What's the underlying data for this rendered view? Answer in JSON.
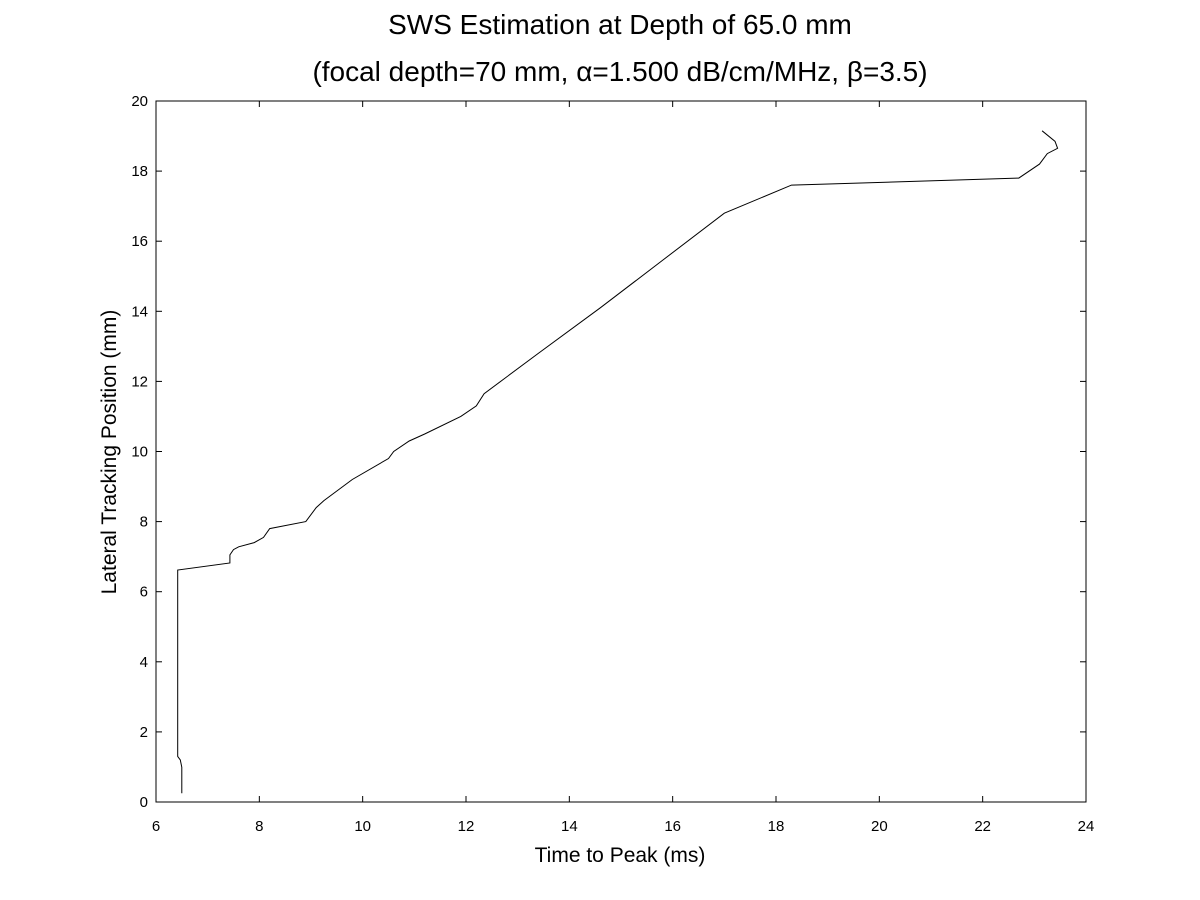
{
  "chart_data": {
    "type": "line",
    "title": "SWS Estimation at Depth of 65.0 mm",
    "subtitle": "(focal depth=70 mm, α=1.500 dB/cm/MHz, β=3.5)",
    "xlabel": "Time to Peak (ms)",
    "ylabel": "Lateral Tracking Position (mm)",
    "xlim": [
      6,
      24
    ],
    "ylim": [
      0,
      20
    ],
    "xticks": [
      "6",
      "8",
      "10",
      "12",
      "14",
      "16",
      "18",
      "20",
      "22",
      "24"
    ],
    "yticks": [
      "0",
      "2",
      "4",
      "6",
      "8",
      "10",
      "12",
      "14",
      "16",
      "18",
      "20"
    ],
    "grid": false,
    "series": [
      {
        "color": "#000000",
        "x": [
          6.5,
          6.5,
          6.47,
          6.42,
          6.42,
          6.42,
          7.43,
          7.43,
          7.5,
          7.6,
          7.9,
          8.08,
          8.2,
          8.9,
          9.1,
          9.25,
          9.8,
          10.5,
          10.6,
          10.9,
          11.2,
          11.9,
          12.2,
          12.35,
          13.4,
          14.6,
          15.8,
          17.0,
          18.3,
          20.5,
          22.7,
          23.1,
          23.25,
          23.45,
          23.4,
          23.15
        ],
        "y": [
          0.25,
          0.99,
          1.2,
          1.3,
          4.0,
          6.62,
          6.82,
          7.05,
          7.2,
          7.28,
          7.4,
          7.55,
          7.8,
          8.0,
          8.4,
          8.6,
          9.2,
          9.8,
          10.0,
          10.3,
          10.5,
          11.0,
          11.3,
          11.65,
          12.8,
          14.1,
          15.45,
          16.8,
          17.6,
          17.7,
          17.8,
          18.2,
          18.5,
          18.65,
          18.85,
          19.15
        ]
      }
    ]
  }
}
